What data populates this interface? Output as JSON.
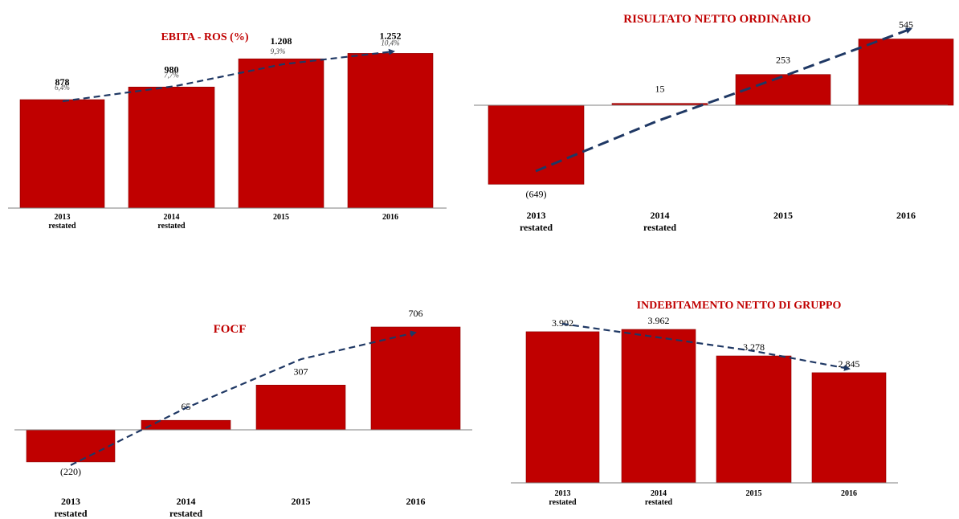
{
  "colors": {
    "bar": "#c00000",
    "bar_edge": "#8b0000",
    "trend": "#1f3864",
    "title": "#c00000",
    "axis": "#7f7f7f",
    "text": "#000000"
  },
  "chart_data": [
    {
      "id": "ebita",
      "type": "bar",
      "title": "EBITA - ROS (%)",
      "categories": [
        [
          "2013",
          "restated"
        ],
        [
          "2014",
          "restated"
        ],
        [
          "2015"
        ],
        [
          "2016"
        ]
      ],
      "values": [
        878,
        980,
        1208,
        1252
      ],
      "value_labels": [
        "878",
        "980",
        "1.208",
        "1.252"
      ],
      "ros_labels": [
        "6,4%",
        "7,7%",
        "9,3%",
        "10,4%"
      ],
      "ylim": [
        0,
        1400
      ],
      "trend": "dashed line with arrow",
      "grid": false
    },
    {
      "id": "risultato",
      "type": "bar",
      "title": "RISULTATO NETTO ORDINARIO",
      "categories": [
        [
          "2013",
          "restated"
        ],
        [
          "2014",
          "restated"
        ],
        [
          "2015"
        ],
        [
          "2016"
        ]
      ],
      "values": [
        -649,
        15,
        253,
        545
      ],
      "value_labels": [
        "(649)",
        "15",
        "253",
        "545"
      ],
      "ylim": [
        -700,
        600
      ],
      "trend": "dashed line with arrow",
      "grid": false
    },
    {
      "id": "focf",
      "type": "bar",
      "title": "FOCF",
      "categories": [
        [
          "2013",
          "restated"
        ],
        [
          "2014",
          "restated"
        ],
        [
          "2015"
        ],
        [
          "2016"
        ]
      ],
      "values": [
        -220,
        65,
        307,
        706
      ],
      "value_labels": [
        "(220)",
        "65",
        "307",
        "706"
      ],
      "ylim": [
        -300,
        800
      ],
      "trend": "dashed line with arrow",
      "grid": false
    },
    {
      "id": "indebitamento",
      "type": "bar",
      "title": "INDEBITAMENTO NETTO DI GRUPPO",
      "categories": [
        [
          "2013",
          "restated"
        ],
        [
          "2014",
          "restated"
        ],
        [
          "2015"
        ],
        [
          "2016"
        ]
      ],
      "values": [
        3902,
        3962,
        3278,
        2845
      ],
      "value_labels": [
        "3.902",
        "3.962",
        "3.278",
        "2.845"
      ],
      "ylim": [
        0,
        4500
      ],
      "trend": "dashed line with arrow",
      "grid": false
    }
  ]
}
